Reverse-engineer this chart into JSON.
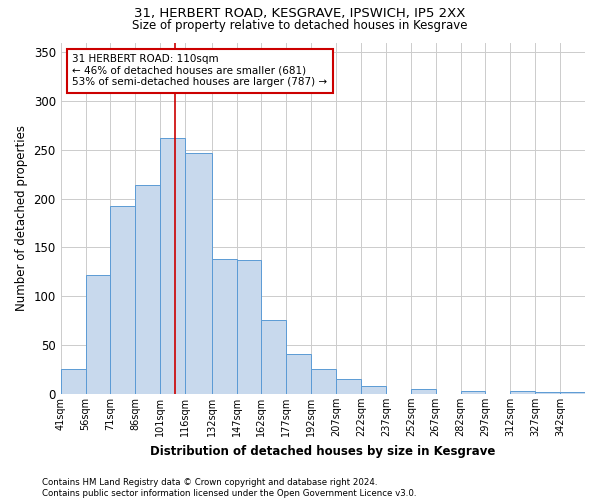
{
  "title1": "31, HERBERT ROAD, KESGRAVE, IPSWICH, IP5 2XX",
  "title2": "Size of property relative to detached houses in Kesgrave",
  "xlabel": "Distribution of detached houses by size in Kesgrave",
  "ylabel": "Number of detached properties",
  "bin_labels": [
    "41sqm",
    "56sqm",
    "71sqm",
    "86sqm",
    "101sqm",
    "116sqm",
    "132sqm",
    "147sqm",
    "162sqm",
    "177sqm",
    "192sqm",
    "207sqm",
    "222sqm",
    "237sqm",
    "252sqm",
    "267sqm",
    "282sqm",
    "297sqm",
    "312sqm",
    "327sqm",
    "342sqm"
  ],
  "bin_edges": [
    41,
    56,
    71,
    86,
    101,
    116,
    132,
    147,
    162,
    177,
    192,
    207,
    222,
    237,
    252,
    267,
    282,
    297,
    312,
    327,
    342,
    357
  ],
  "bar_heights": [
    25,
    122,
    193,
    214,
    262,
    247,
    138,
    137,
    76,
    41,
    25,
    15,
    8,
    0,
    5,
    0,
    3,
    0,
    3,
    2,
    2
  ],
  "bar_color": "#c8d9ed",
  "bar_edge_color": "#5b9bd5",
  "property_size": 110,
  "vline_color": "#cc0000",
  "annotation_text": "31 HERBERT ROAD: 110sqm\n← 46% of detached houses are smaller (681)\n53% of semi-detached houses are larger (787) →",
  "annotation_box_color": "#ffffff",
  "annotation_box_edge_color": "#cc0000",
  "ylim": [
    0,
    360
  ],
  "yticks": [
    0,
    50,
    100,
    150,
    200,
    250,
    300,
    350
  ],
  "footnote": "Contains HM Land Registry data © Crown copyright and database right 2024.\nContains public sector information licensed under the Open Government Licence v3.0.",
  "bg_color": "#ffffff",
  "grid_color": "#cccccc"
}
